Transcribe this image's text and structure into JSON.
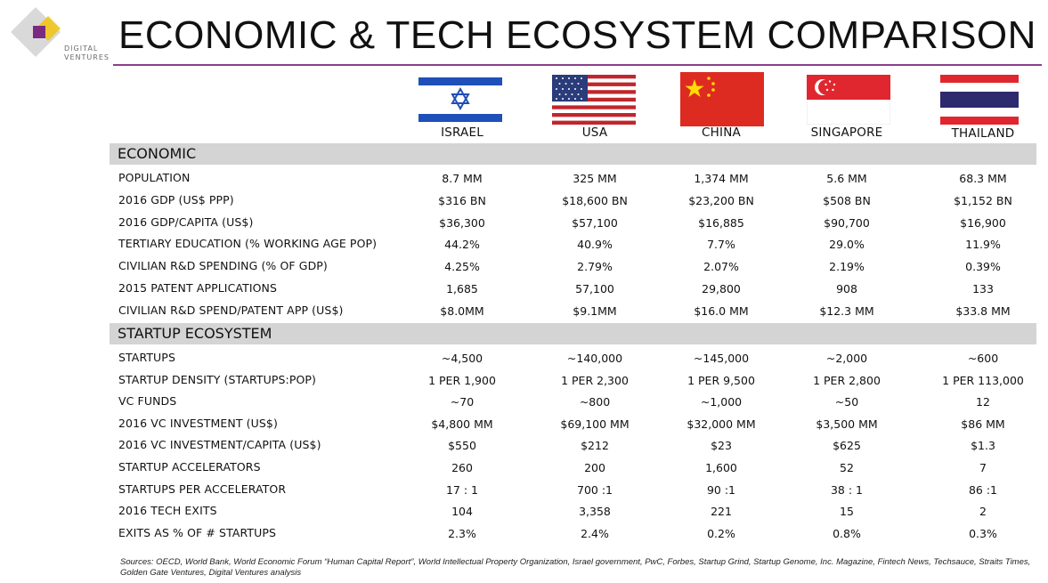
{
  "logo": {
    "line1": "DIGITAL",
    "line2": "VENTURES"
  },
  "title": "ECONOMIC & TECH ECOSYSTEM COMPARISON",
  "countries": [
    "ISRAEL",
    "USA",
    "CHINA",
    "SINGAPORE",
    "THAILAND"
  ],
  "colors": {
    "accent": "#8a3f8a",
    "section_bg": "#d4d4d4",
    "logo_purple": "#7b2a82",
    "logo_yellow": "#f0c419"
  },
  "economic": {
    "heading": "ECONOMIC",
    "rows": [
      {
        "label": "POPULATION",
        "values": [
          "8.7 MM",
          "325 MM",
          "1,374 MM",
          "5.6 MM",
          "68.3 MM"
        ]
      },
      {
        "label": "2016 GDP (US$ PPP)",
        "values": [
          "$316 BN",
          "$18,600 BN",
          "$23,200 BN",
          "$508 BN",
          "$1,152 BN"
        ]
      },
      {
        "label": "2016 GDP/CAPITA (US$)",
        "values": [
          "$36,300",
          "$57,100",
          "$16,885",
          "$90,700",
          "$16,900"
        ]
      },
      {
        "label": "TERTIARY EDUCATION (% WORKING AGE POP)",
        "values": [
          "44.2%",
          "40.9%",
          "7.7%",
          "29.0%",
          "11.9%"
        ]
      },
      {
        "label": "CIVILIAN R&D SPENDING (% OF GDP)",
        "values": [
          "4.25%",
          "2.79%",
          "2.07%",
          "2.19%",
          "0.39%"
        ]
      },
      {
        "label": "2015 PATENT APPLICATIONS",
        "values": [
          "1,685",
          "57,100",
          "29,800",
          "908",
          "133"
        ]
      },
      {
        "label": "CIVILIAN R&D SPEND/PATENT APP (US$)",
        "values": [
          "$8.0MM",
          "$9.1MM",
          "$16.0 MM",
          "$12.3 MM",
          "$33.8 MM"
        ]
      }
    ]
  },
  "startup": {
    "heading": "STARTUP ECOSYSTEM",
    "rows": [
      {
        "label": "STARTUPS",
        "values": [
          "~4,500",
          "~140,000",
          "~145,000",
          "~2,000",
          "~600"
        ]
      },
      {
        "label": "STARTUP DENSITY (STARTUPS:POP)",
        "values": [
          "1 PER 1,900",
          "1 PER 2,300",
          "1 PER 9,500",
          "1 PER 2,800",
          "1 PER 113,000"
        ]
      },
      {
        "label": "VC FUNDS",
        "values": [
          "~70",
          "~800",
          "~1,000",
          "~50",
          "12"
        ]
      },
      {
        "label": "2016 VC INVESTMENT (US$)",
        "values": [
          "$4,800 MM",
          "$69,100 MM",
          "$32,000 MM",
          "$3,500 MM",
          "$86 MM"
        ]
      },
      {
        "label": "2016 VC INVESTMENT/CAPITA (US$)",
        "values": [
          "$550",
          "$212",
          "$23",
          "$625",
          "$1.3"
        ]
      },
      {
        "label": "STARTUP ACCELERATORS",
        "values": [
          "260",
          "200",
          "1,600",
          "52",
          "7"
        ]
      },
      {
        "label": "STARTUPS PER ACCELERATOR",
        "values": [
          "17 : 1",
          "700 :1",
          "90 :1",
          "38 : 1",
          "86 :1"
        ]
      },
      {
        "label": "2016 TECH EXITS",
        "values": [
          "104",
          "3,358",
          "221",
          "15",
          "2"
        ]
      },
      {
        "label": "EXITS AS % OF # STARTUPS",
        "values": [
          "2.3%",
          "2.4%",
          "0.2%",
          "0.8%",
          "0.3%"
        ]
      }
    ]
  },
  "sources": "Sources: OECD, World Bank, World Economic Forum “Human Capital Report”, World Intellectual Property Organization, Israel government, PwC, Forbes, Startup Grind, Startup Genome, Inc. Magazine, Fintech News, Techsauce, Straits Times, Golden Gate Ventures, Digital Ventures analysis"
}
